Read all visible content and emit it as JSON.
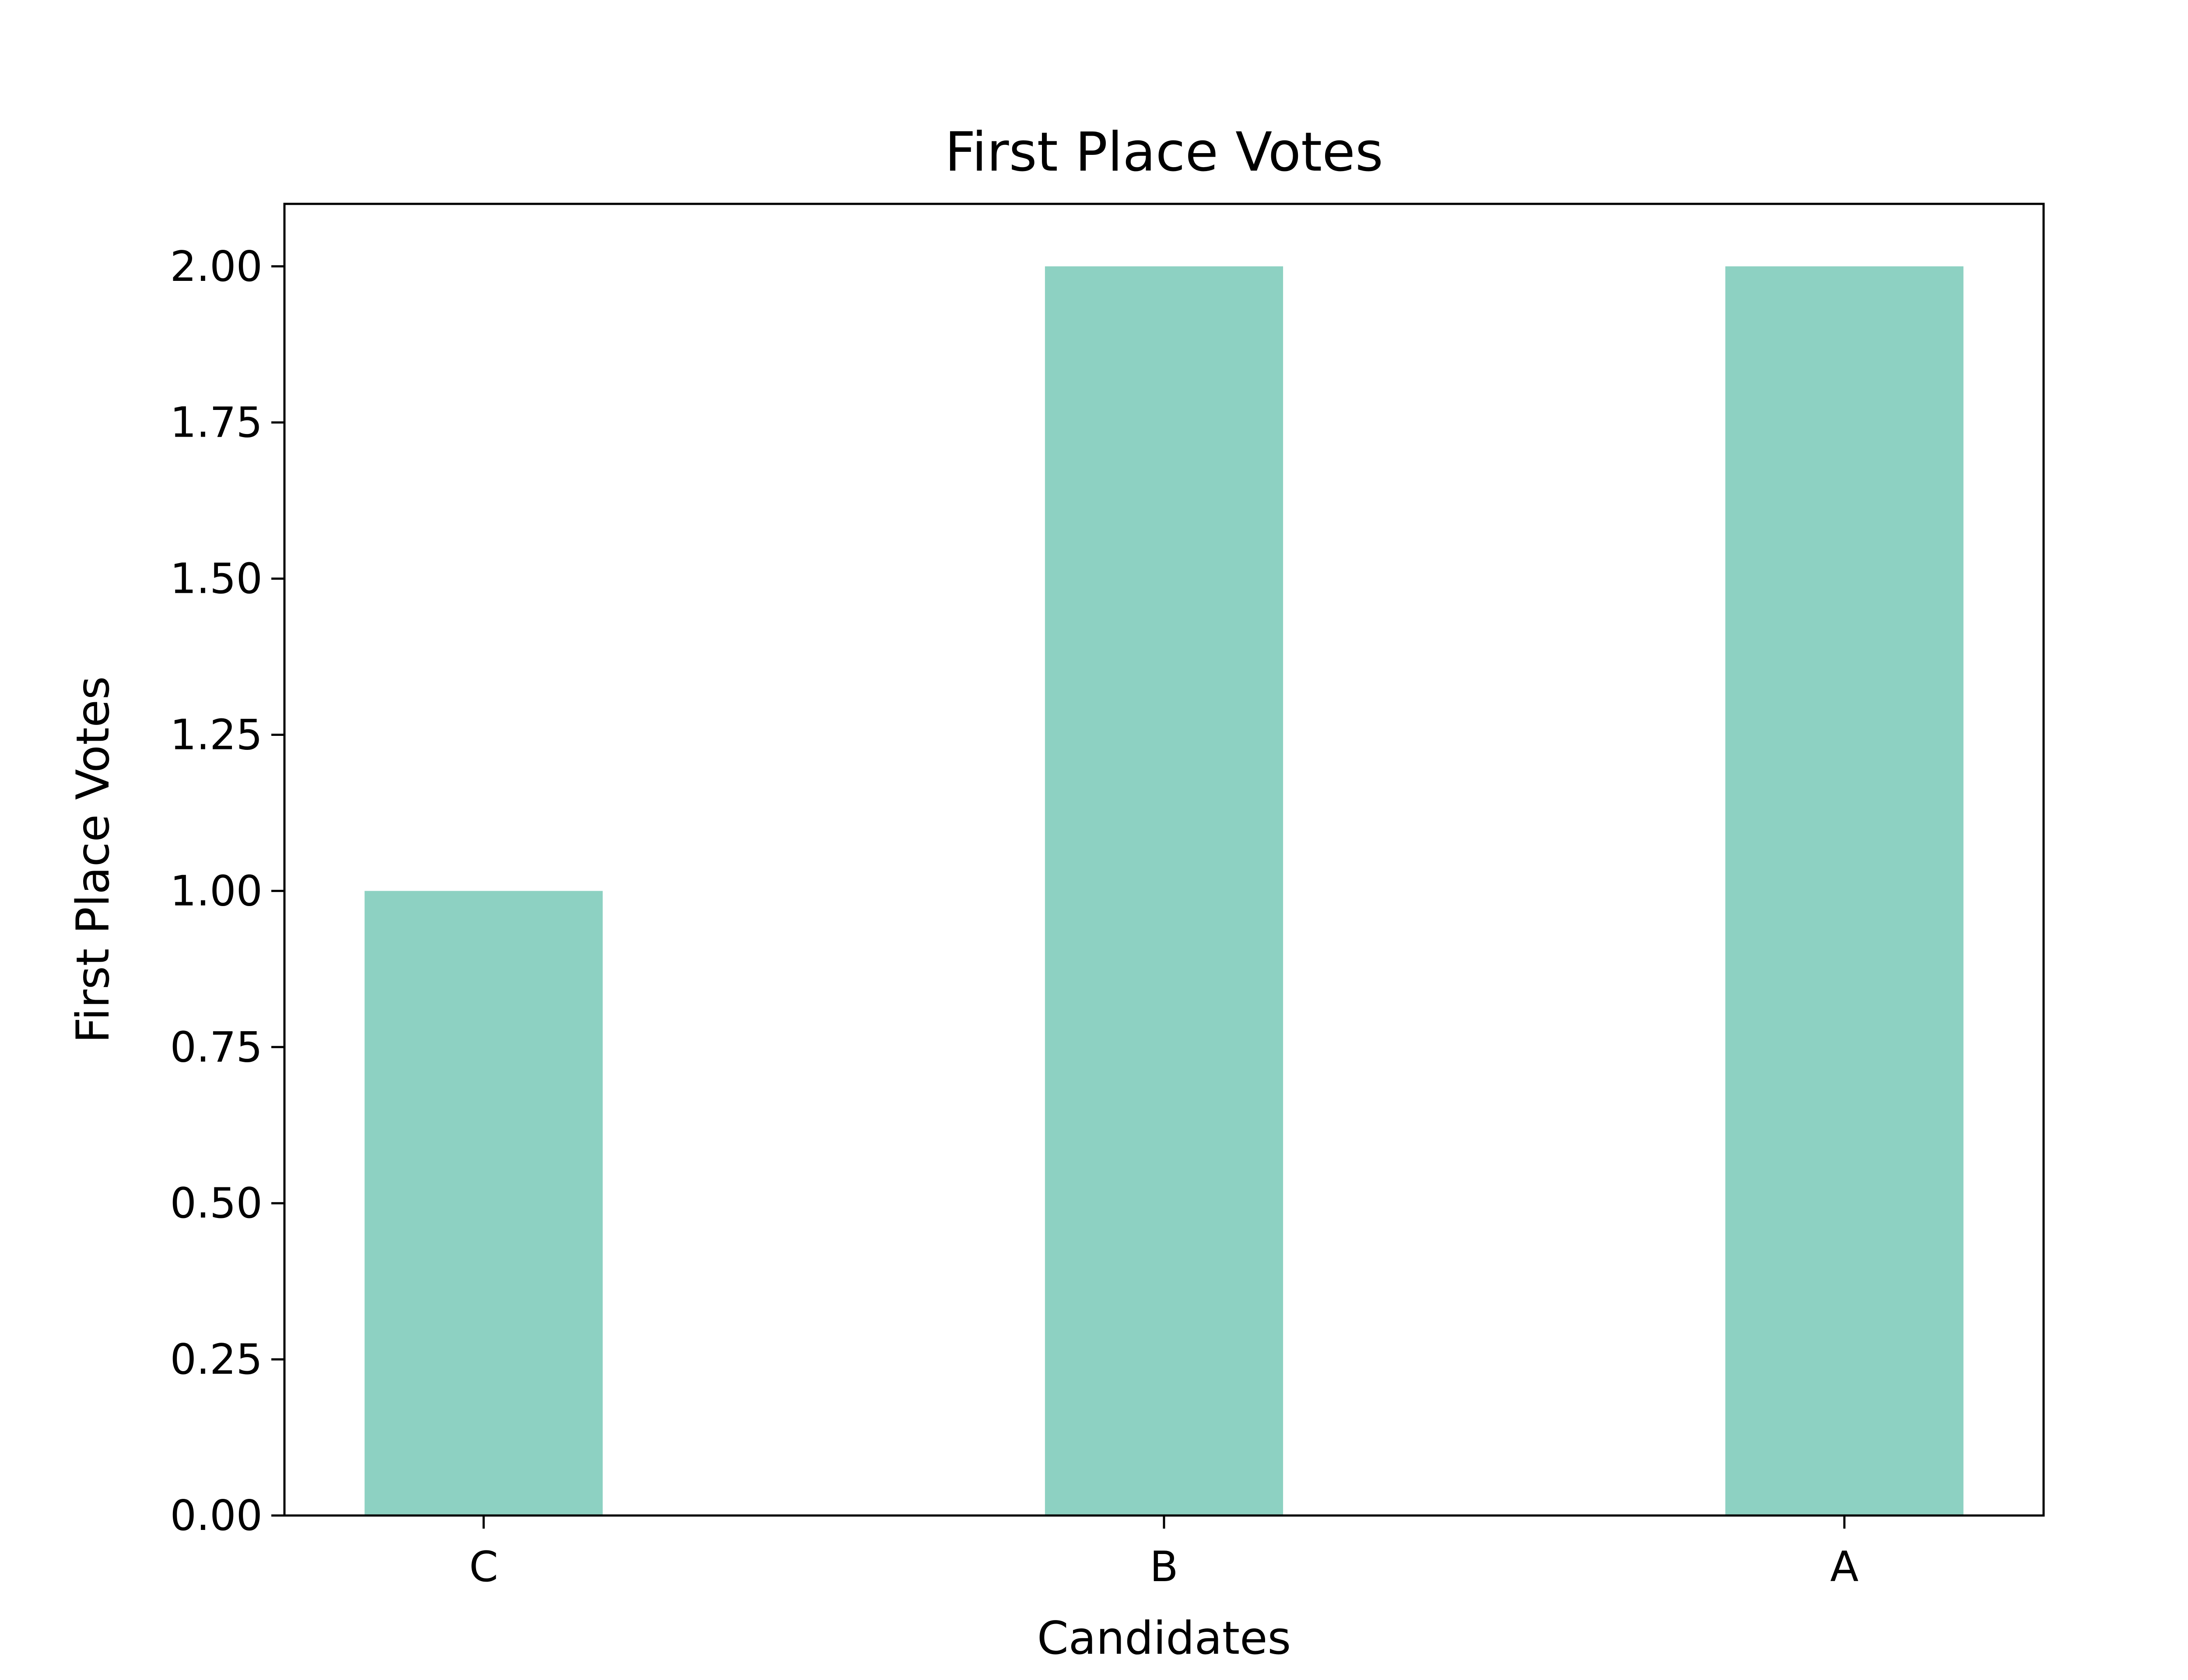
{
  "chart_data": {
    "type": "bar",
    "title": "First Place Votes",
    "xlabel": "Candidates",
    "ylabel": "First Place Votes",
    "categories": [
      "C",
      "B",
      "A"
    ],
    "values": [
      1,
      2,
      2
    ],
    "ylim": [
      0,
      2.1
    ],
    "yticks": [
      "0.00",
      "0.25",
      "0.50",
      "0.75",
      "1.00",
      "1.25",
      "1.50",
      "1.75",
      "2.00"
    ],
    "grid": false,
    "legend": "none",
    "bar_color": "#8dd1c2",
    "axis_color": "#000000"
  }
}
